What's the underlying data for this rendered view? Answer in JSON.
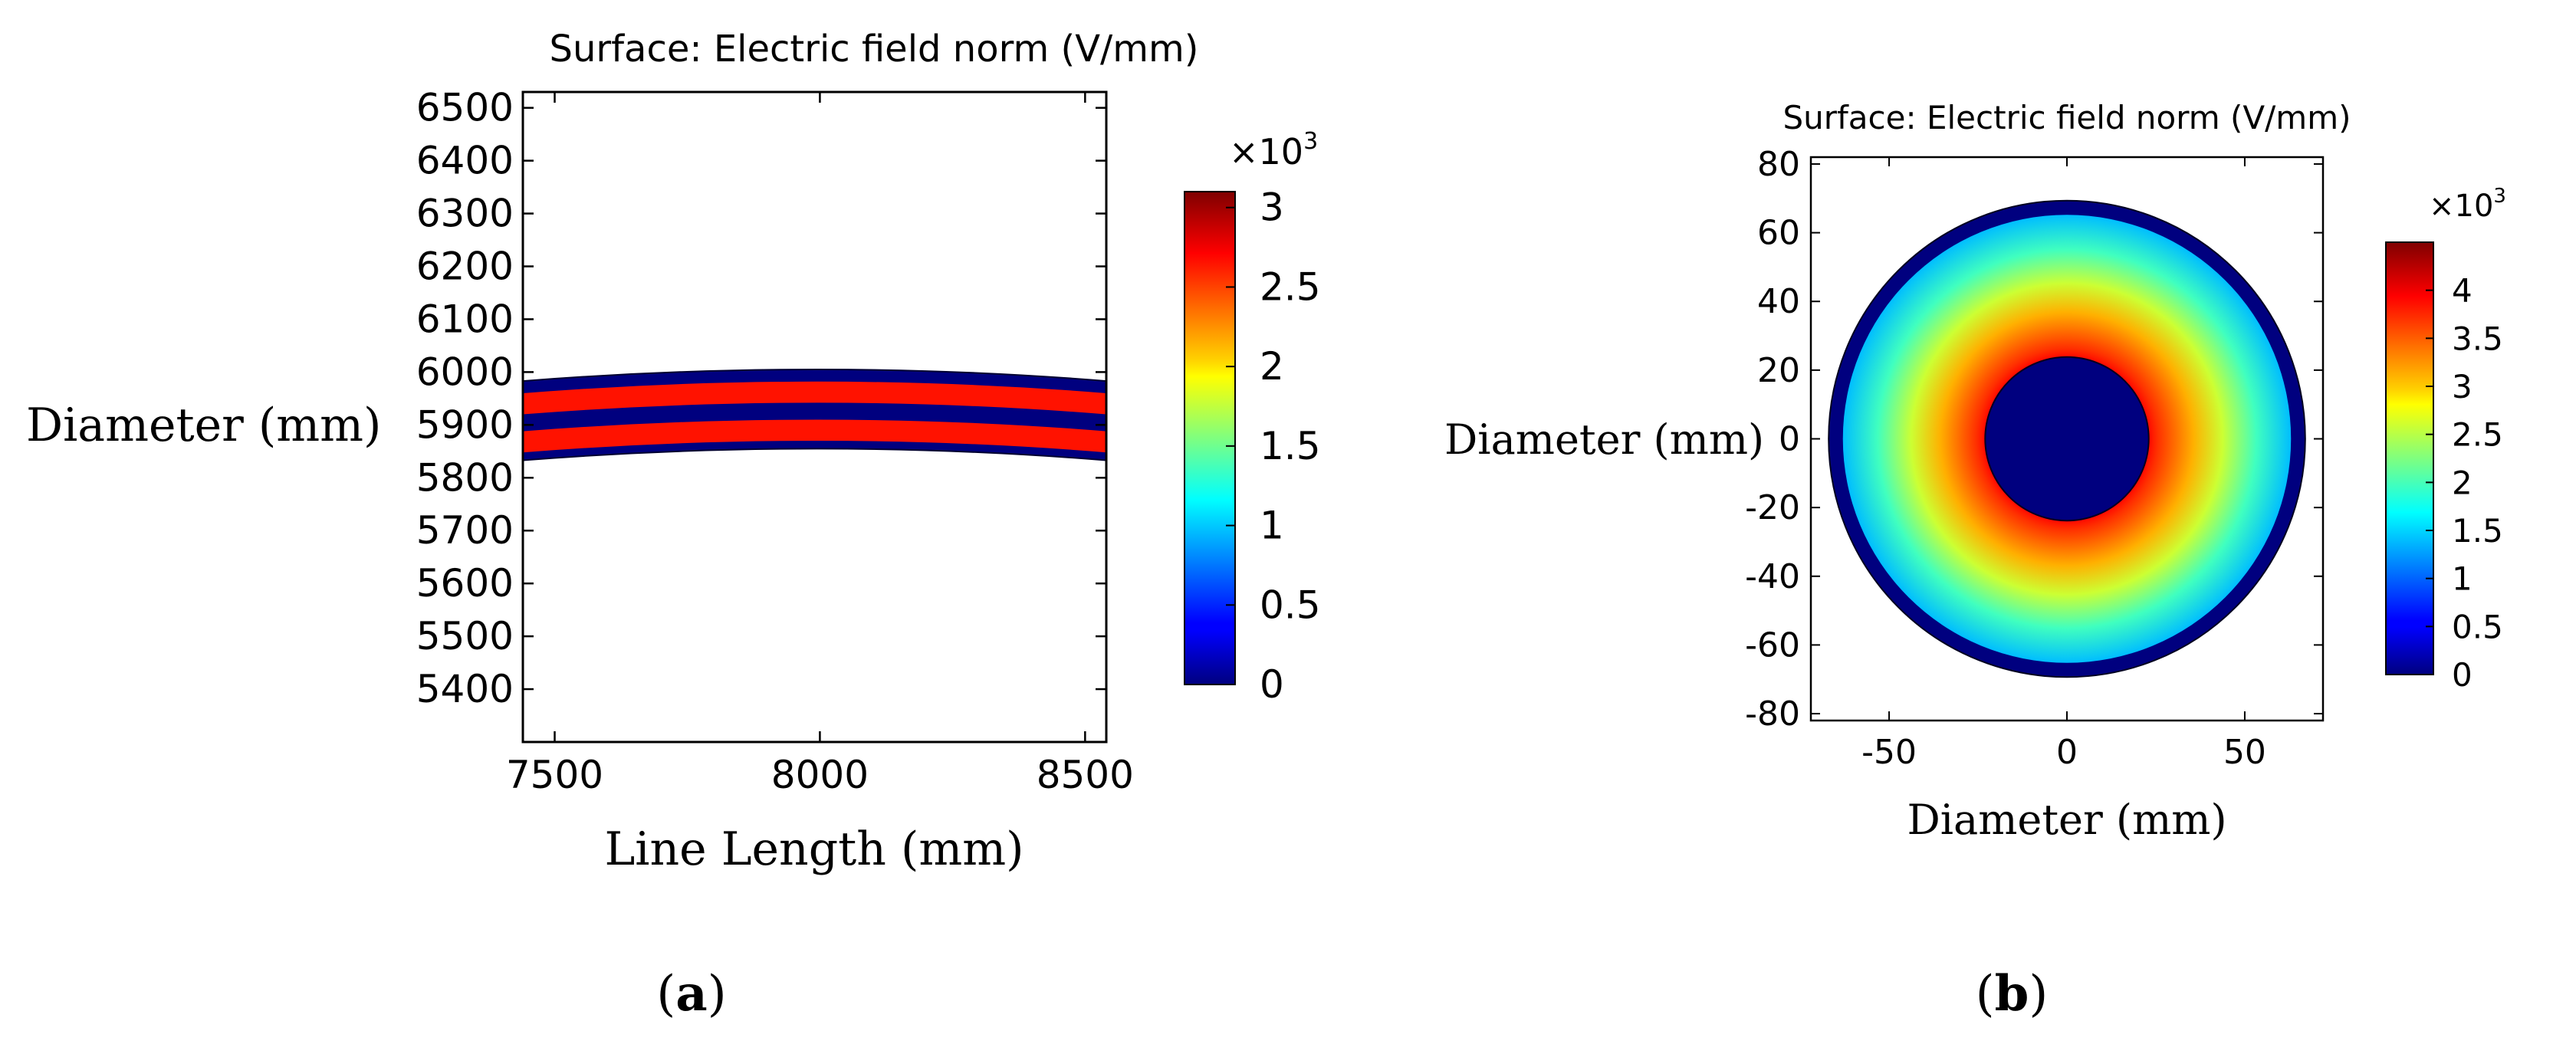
{
  "chart_data": [
    {
      "id": "a",
      "type": "heatmap",
      "subfigure_label": "(a)",
      "title": "Surface: Electric field norm (V/mm)",
      "xlabel": "Line Length (mm)",
      "ylabel": "Diameter (mm)",
      "xlim": [
        7440,
        8540
      ],
      "ylim": [
        5300,
        6530
      ],
      "xticks": [
        7500,
        8000,
        8500
      ],
      "yticks": [
        5400,
        5500,
        5600,
        5700,
        5800,
        5900,
        6000,
        6100,
        6200,
        6300,
        6400,
        6500
      ],
      "colorbar": {
        "multiplier": "×10",
        "exponent": "3",
        "range": [
          0,
          3.1
        ],
        "ticks": [
          0,
          0.5,
          1,
          1.5,
          2,
          2.5,
          3
        ],
        "tick_labels": [
          "0",
          "0.5",
          "1",
          "1.5",
          "2",
          "2.5",
          "3"
        ]
      },
      "geometry": {
        "x_from": 7440,
        "x_to": 8540,
        "x_peak": 8000,
        "sag_at_edges": 22,
        "bands": [
          {
            "name": "outer-sheath",
            "y_bottom": 5855,
            "y_top": 6005,
            "value": 0
          },
          {
            "name": "upper-conductor",
            "y_bottom": 5942,
            "y_top": 5982,
            "value": 3.0
          },
          {
            "name": "lower-conductor",
            "y_bottom": 5870,
            "y_top": 5910,
            "value": 3.0
          }
        ]
      }
    },
    {
      "id": "b",
      "type": "heatmap",
      "subfigure_label": "(b)",
      "title": "Surface: Electric field norm (V/mm)",
      "xlabel": "Diameter (mm)",
      "ylabel": "Diameter (mm)",
      "xlim": [
        -72,
        72
      ],
      "ylim": [
        -82,
        82
      ],
      "xticks": [
        -50,
        0,
        50
      ],
      "yticks": [
        -80,
        -60,
        -40,
        -20,
        0,
        20,
        40,
        60,
        80
      ],
      "colorbar": {
        "multiplier": "×10",
        "exponent": "3",
        "range": [
          0,
          4.5
        ],
        "ticks": [
          0,
          0.5,
          1,
          1.5,
          2,
          2.5,
          3,
          3.5,
          4
        ],
        "tick_labels": [
          "0",
          "0.5",
          "1",
          "1.5",
          "2",
          "2.5",
          "3",
          "3.5",
          "4"
        ]
      },
      "geometry": {
        "conductor_radius_mm": 23,
        "insulation_outer_radius_mm": 63,
        "sheath_outer_radius_mm": 67,
        "conductor_value": 0,
        "sheath_value": 0,
        "field_at_conductor_surface": 3.9,
        "field_at_insulation_outer": 1.4
      }
    }
  ]
}
